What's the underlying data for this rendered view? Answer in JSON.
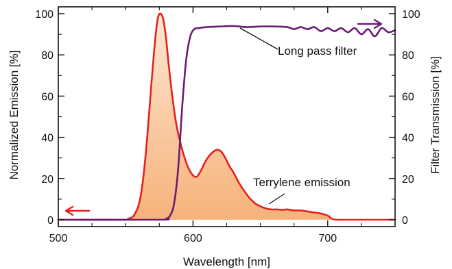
{
  "chart_data": {
    "type": "line",
    "xlabel": "Wavelength [nm]",
    "ylabel_left": "Normalized Emission [%]",
    "ylabel_right": "Filter Transmission [%]",
    "xlim": [
      500,
      750
    ],
    "ylim_left": [
      0,
      100
    ],
    "ylim_right": [
      0,
      100
    ],
    "xticks": [
      500,
      600,
      700
    ],
    "yticks_left": [
      0,
      20,
      40,
      60,
      80,
      100
    ],
    "yticks_right": [
      0,
      20,
      40,
      60,
      80,
      100
    ],
    "grid": false,
    "series": [
      {
        "name": "Terrylene emission",
        "axis": "left",
        "color": "#e8201c",
        "fill": "#f7b57a",
        "x": [
          500,
          548,
          552,
          556,
          560,
          563,
          566,
          569,
          572,
          574,
          576,
          578,
          580,
          582,
          585,
          588,
          592,
          596,
          600,
          603,
          606,
          609,
          612,
          615,
          618,
          621,
          624,
          627,
          630,
          634,
          638,
          642,
          646,
          650,
          654,
          658,
          662,
          666,
          670,
          675,
          680,
          685,
          690,
          695,
          700,
          703,
          706,
          710,
          730,
          750
        ],
        "y": [
          0,
          0,
          0.5,
          2,
          8,
          20,
          40,
          65,
          88,
          98,
          100,
          97,
          88,
          75,
          58,
          45,
          34,
          26,
          21.5,
          21,
          24,
          28,
          31,
          33,
          34,
          33,
          30,
          26,
          23,
          18,
          14,
          10.5,
          8,
          6.5,
          5.5,
          5,
          5,
          4.8,
          5,
          4.5,
          4.5,
          4,
          3.5,
          3,
          2,
          0.5,
          0,
          0,
          0,
          0
        ]
      },
      {
        "name": "Long pass filter",
        "axis": "right",
        "color": "#6a1b73",
        "x": [
          500,
          575,
          580,
          583,
          586,
          589,
          592,
          595,
          598,
          601,
          604,
          610,
          620,
          630,
          640,
          650,
          660,
          670,
          675,
          680,
          685,
          690,
          695,
          700,
          705,
          710,
          715,
          720,
          725,
          730,
          735,
          740,
          745,
          750
        ],
        "y": [
          0,
          0,
          0.5,
          2,
          8,
          25,
          55,
          78,
          89,
          92.5,
          93,
          93.5,
          93.8,
          94,
          93.5,
          93.8,
          93.8,
          93.5,
          92.5,
          93.5,
          92.5,
          93.5,
          91.5,
          93,
          91.5,
          93,
          91,
          93,
          90,
          92.5,
          89,
          93,
          91,
          92
        ]
      }
    ],
    "annotations": [
      {
        "text": "Long pass filter"
      },
      {
        "text": "Terrylene emission"
      }
    ]
  }
}
